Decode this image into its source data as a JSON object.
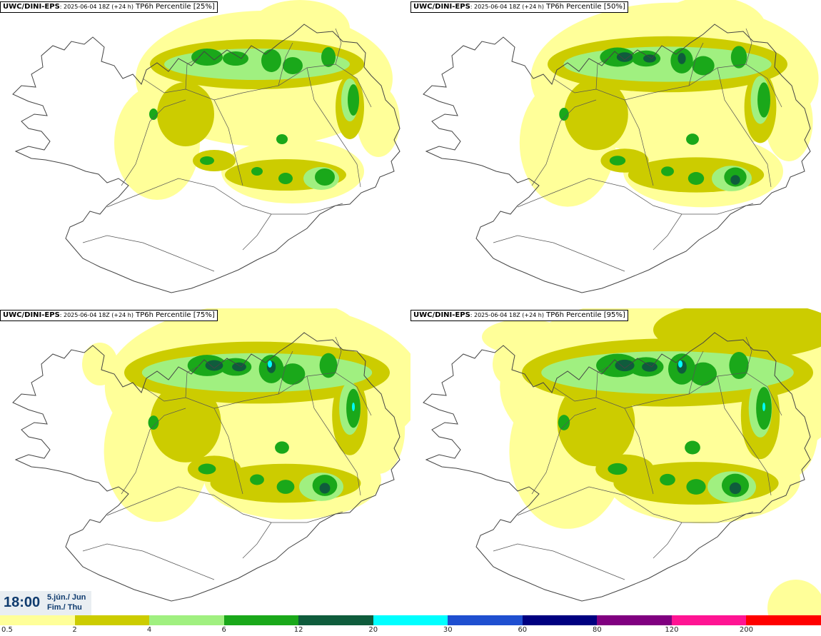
{
  "panels": [
    {
      "source": "UWC/DINI-EPS",
      "run": ": 2025-06-04 18Z (+24 h)",
      "param": " TP6h Percentile [25%]",
      "level": 0
    },
    {
      "source": "UWC/DINI-EPS",
      "run": ": 2025-06-04 18Z (+24 h)",
      "param": " TP6h Percentile [50%]",
      "level": 1
    },
    {
      "source": "UWC/DINI-EPS",
      "run": ": 2025-06-04 18Z (+24 h)",
      "param": " TP6h Percentile [75%]",
      "level": 2
    },
    {
      "source": "UWC/DINI-EPS",
      "run": ": 2025-06-04 18Z (+24 h)",
      "param": " TP6h Percentile [95%]",
      "level": 3
    }
  ],
  "time": {
    "clock": "18:00",
    "date_line1": "5.jún./ Jun",
    "date_line2": "Fim./ Thu"
  },
  "legend": {
    "labels": [
      "0.5",
      "2",
      "4",
      "6",
      "12",
      "20",
      "30",
      "60",
      "80",
      "120",
      "200"
    ],
    "colors": [
      "#ffff99",
      "#cccc00",
      "#a0f080",
      "#1aa81a",
      "#0f5c3c",
      "#00ffff",
      "#1f4fd0",
      "#000080",
      "#800080",
      "#ff1493",
      "#ff0000"
    ]
  },
  "colors": {
    "land_outline": "#444444",
    "roads": "#555555"
  }
}
